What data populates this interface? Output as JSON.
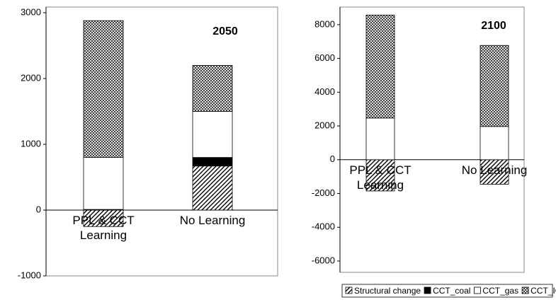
{
  "chart_data": [
    {
      "type": "bar",
      "stacked": true,
      "title": "2050",
      "categories": [
        "PPL & CCT Learning",
        "No Learning"
      ],
      "series": [
        {
          "color": "#000000",
          "pattern": "diagonal",
          "values": [
            -250,
            670
          ]
        },
        {
          "color": "#000000",
          "pattern": "solid",
          "values": [
            10,
            130
          ]
        },
        {
          "color": "#ffffff",
          "pattern": "solid",
          "values": [
            790,
            700
          ]
        },
        {
          "color": "#000000",
          "pattern": "crosshatch",
          "values": [
            2080,
            700
          ]
        }
      ],
      "ylim": [
        -1000,
        3000
      ],
      "yticks": [
        -1000,
        0,
        1000,
        2000,
        3000
      ]
    },
    {
      "type": "bar",
      "stacked": true,
      "title": "2100",
      "categories": [
        "PPL & CCT Learning",
        "No Learning"
      ],
      "series": [
        {
          "name": "Structural change",
          "color": "#000000",
          "pattern": "diagonal",
          "values": [
            -1850,
            -1450
          ]
        },
        {
          "name": "CCT_coal",
          "color": "#000000",
          "pattern": "solid",
          "values": [
            0,
            0
          ]
        },
        {
          "name": "CCT_gas",
          "color": "#ffffff",
          "pattern": "solid",
          "values": [
            2470,
            1970
          ]
        },
        {
          "name": "CCT_IGFC",
          "color": "#000000",
          "pattern": "crosshatch",
          "values": [
            6100,
            4800
          ]
        }
      ],
      "ylim": [
        -6000,
        9000
      ],
      "yticks": [
        -6000,
        -4000,
        -2000,
        0,
        2000,
        4000,
        6000,
        8000
      ],
      "legend": "bottom"
    }
  ]
}
